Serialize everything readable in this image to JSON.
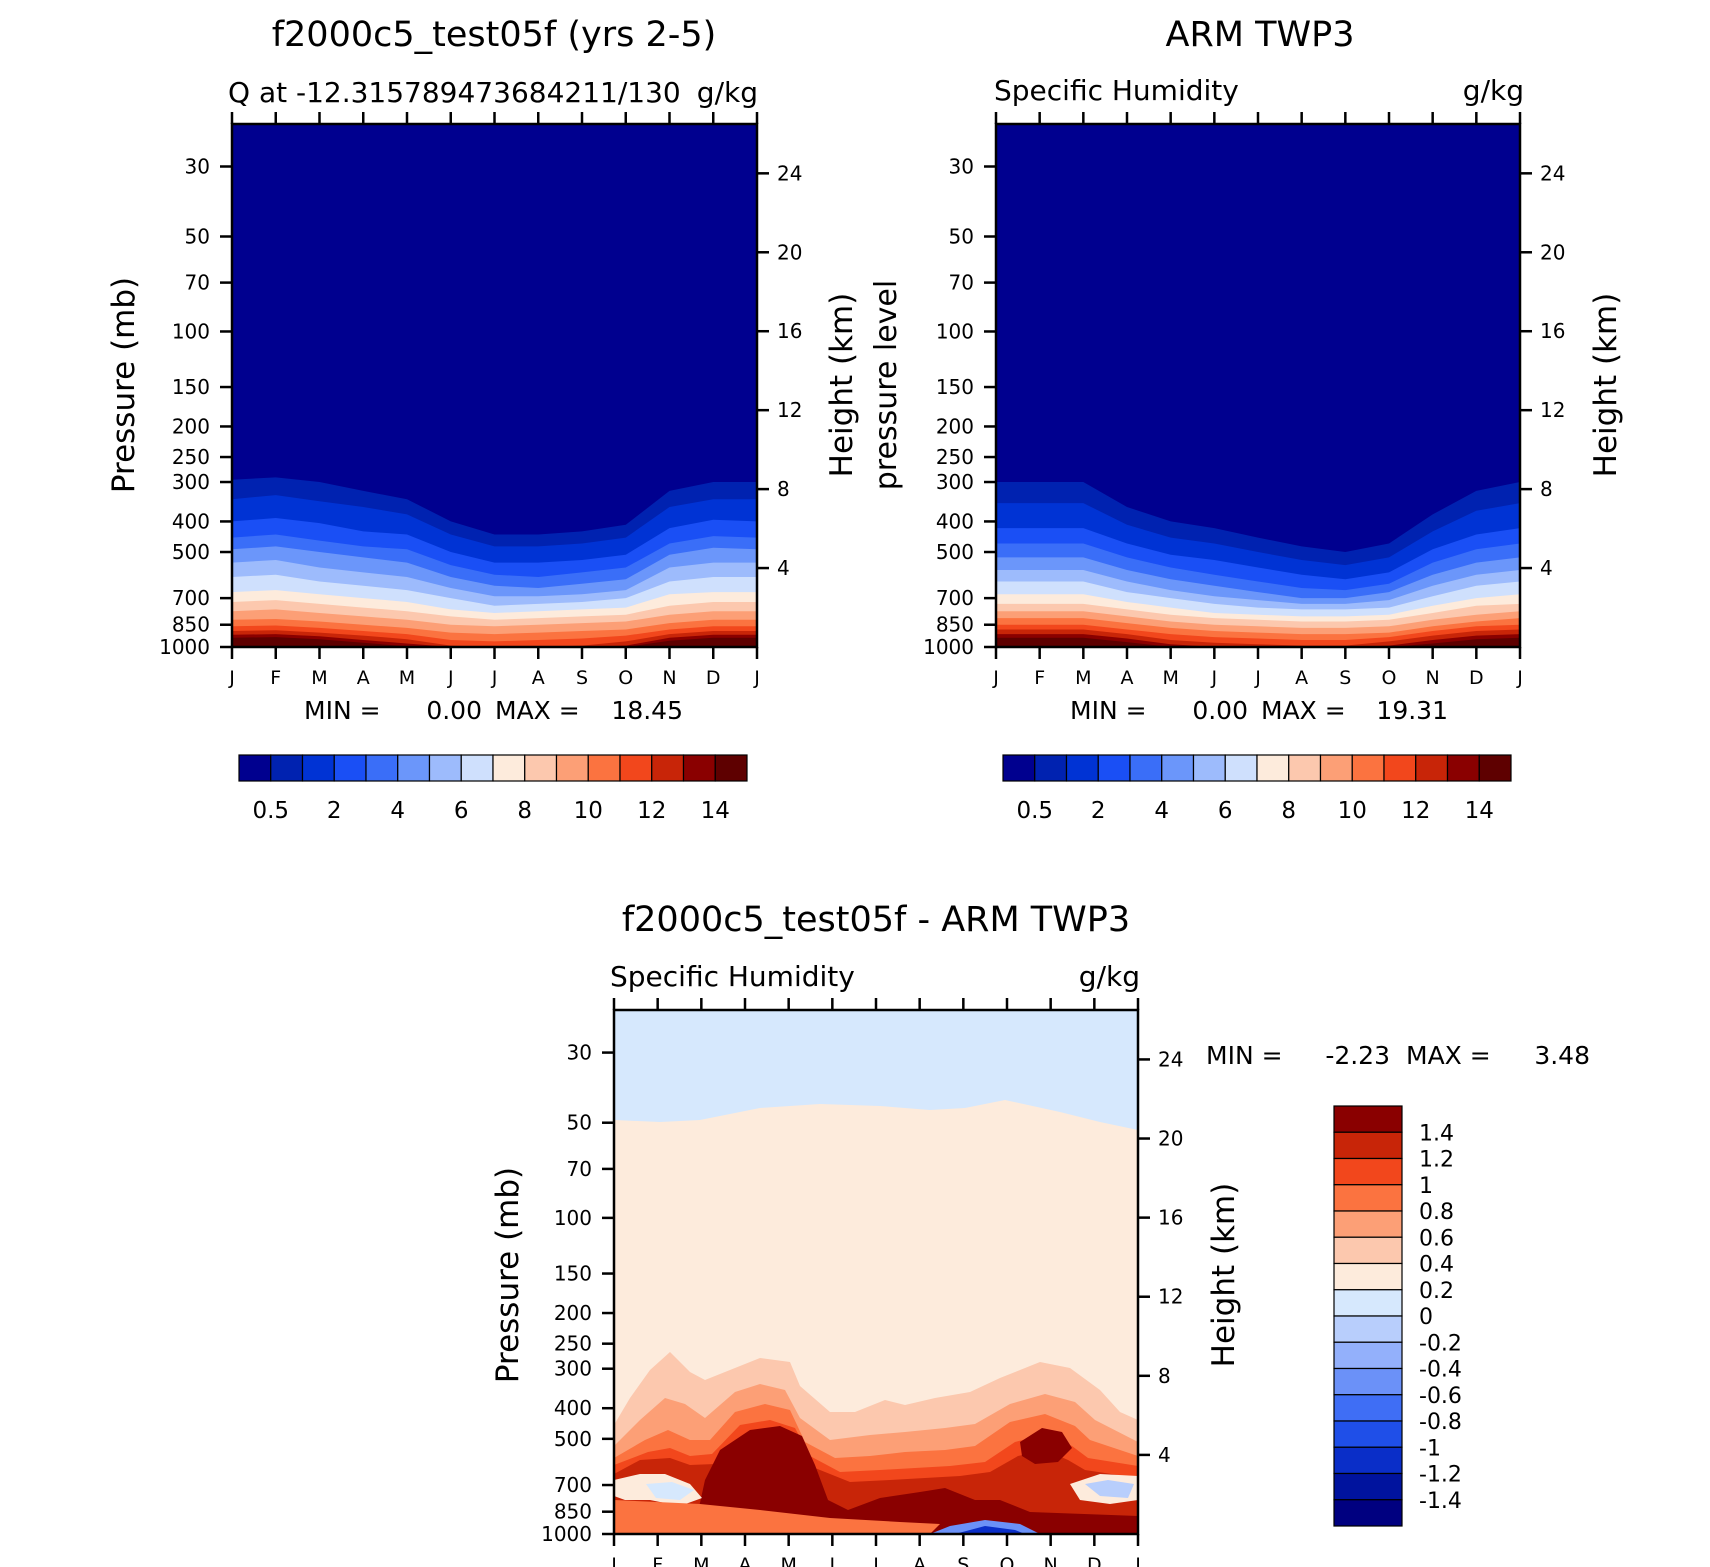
{
  "chart_data": [
    {
      "type": "contour",
      "title": "f2000c5_test05f (yrs 2-5)",
      "subtitle_left": "Q at -12.315789473684211/130",
      "subtitle_right": "g/kg",
      "ylabel": "Pressure (mb)",
      "ylabel_right": "Height (km)",
      "xticks": [
        "J",
        "F",
        "M",
        "A",
        "M",
        "J",
        "J",
        "A",
        "S",
        "O",
        "N",
        "D",
        "J"
      ],
      "yticks": [
        "30",
        "50",
        "70",
        "100",
        "150",
        "200",
        "250",
        "300",
        "400",
        "500",
        "700",
        "850",
        "1000"
      ],
      "yticks_right": [
        "24",
        "20",
        "16",
        "12",
        "8",
        "4"
      ],
      "min_label": "MIN =",
      "min": "0.00",
      "max_label": "MAX =",
      "max": "18.45",
      "levels": [
        "0.5",
        "1",
        "2",
        "3",
        "4",
        "5",
        "6",
        "7",
        "8",
        "9",
        "10",
        "11",
        "12",
        "13",
        "14"
      ],
      "colorbar_labels": [
        "0.5",
        "2",
        "4",
        "6",
        "8",
        "10",
        "12",
        "14"
      ],
      "colors": [
        "#00008f",
        "#0022b0",
        "#0033d4",
        "#1a4ff5",
        "#3a6ef8",
        "#6b96fa",
        "#9dbbfc",
        "#cfe0fd",
        "#fdebdc",
        "#fcc8ae",
        "#fc9f76",
        "#fb7340",
        "#f2471c",
        "#c82508",
        "#8a0000",
        "#5e0000"
      ]
    },
    {
      "type": "contour",
      "title": "ARM TWP3",
      "subtitle_left": "Specific Humidity",
      "subtitle_right": "g/kg",
      "ylabel": "pressure level",
      "ylabel_right": "Height (km)",
      "xticks": [
        "J",
        "F",
        "M",
        "A",
        "M",
        "J",
        "J",
        "A",
        "S",
        "O",
        "N",
        "D",
        "J"
      ],
      "yticks": [
        "30",
        "50",
        "70",
        "100",
        "150",
        "200",
        "250",
        "300",
        "400",
        "500",
        "700",
        "850",
        "1000"
      ],
      "yticks_right": [
        "24",
        "20",
        "16",
        "12",
        "8",
        "4"
      ],
      "min_label": "MIN =",
      "min": "0.00",
      "max_label": "MAX =",
      "max": "19.31",
      "levels": [
        "0.5",
        "1",
        "2",
        "3",
        "4",
        "5",
        "6",
        "7",
        "8",
        "9",
        "10",
        "11",
        "12",
        "13",
        "14"
      ],
      "colorbar_labels": [
        "0.5",
        "2",
        "4",
        "6",
        "8",
        "10",
        "12",
        "14"
      ]
    },
    {
      "type": "contour",
      "title": "f2000c5_test05f - ARM TWP3",
      "subtitle_left": "Specific Humidity",
      "subtitle_right": "g/kg",
      "ylabel": "Pressure (mb)",
      "ylabel_right": "Height (km)",
      "xticks": [
        "J",
        "F",
        "M",
        "A",
        "M",
        "J",
        "J",
        "A",
        "S",
        "O",
        "N",
        "D",
        "J"
      ],
      "yticks": [
        "30",
        "50",
        "70",
        "100",
        "150",
        "200",
        "250",
        "300",
        "400",
        "500",
        "700",
        "850",
        "1000"
      ],
      "yticks_right": [
        "24",
        "20",
        "16",
        "12",
        "8",
        "4"
      ],
      "min_label": "MIN =",
      "min": "-2.23",
      "max_label": "MAX =",
      "max": "3.48",
      "colorbar_labels": [
        "1.4",
        "1.2",
        "1",
        "0.8",
        "0.6",
        "0.4",
        "0.2",
        "0",
        "-0.2",
        "-0.4",
        "-0.6",
        "-0.8",
        "-1",
        "-1.2",
        "-1.4"
      ],
      "diff_colors": [
        "#8a0000",
        "#c82508",
        "#f2471c",
        "#fb7340",
        "#fc9f76",
        "#fcc8ae",
        "#fdebdc",
        "#d6e8fd",
        "#b8cefc",
        "#93b0fb",
        "#6b91f8",
        "#3f6ef5",
        "#1f4fe8",
        "#0a2ec8",
        "#00139e",
        "#000080"
      ]
    }
  ]
}
